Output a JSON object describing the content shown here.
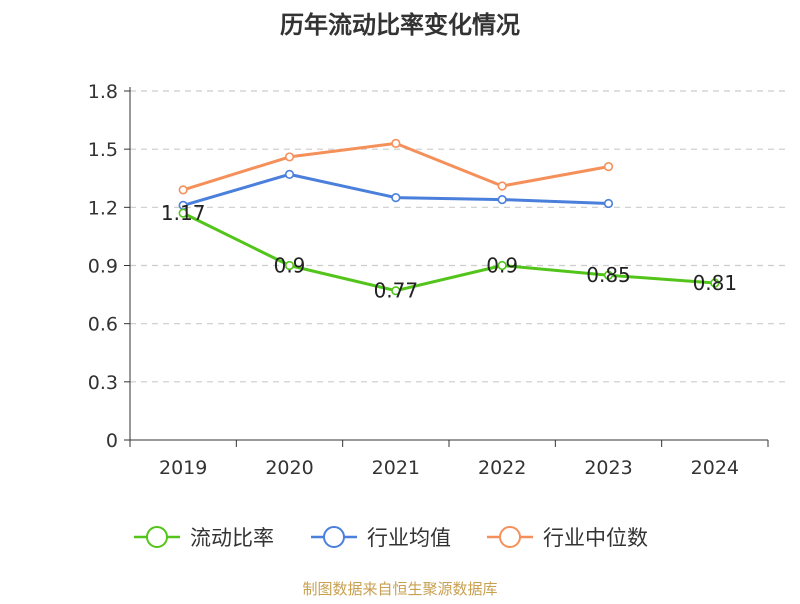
{
  "chart_data": {
    "type": "line",
    "title": "历年流动比率变化情况",
    "categories": [
      "2019",
      "2020",
      "2021",
      "2022",
      "2023",
      "2024"
    ],
    "ylim": [
      0,
      1.8
    ],
    "yticks": [
      "0",
      "0.3",
      "0.6",
      "0.9",
      "1.2",
      "1.5",
      "1.8"
    ],
    "grid": true,
    "legend_position": "bottom",
    "series": [
      {
        "name": "流动比率",
        "color": "#52c41a",
        "values": [
          1.17,
          0.9,
          0.77,
          0.9,
          0.85,
          0.81
        ],
        "labels": [
          "1.17",
          "0.9",
          "0.77",
          "0.9",
          "0.85",
          "0.81"
        ]
      },
      {
        "name": "行业均值",
        "color": "#4a7fdc",
        "values": [
          1.21,
          1.37,
          1.25,
          1.24,
          1.22,
          null
        ]
      },
      {
        "name": "行业中位数",
        "color": "#f5905a",
        "values": [
          1.29,
          1.46,
          1.53,
          1.31,
          1.41,
          null
        ]
      }
    ],
    "source": "制图数据来自恒生聚源数据库",
    "source_color": "#c8a050"
  }
}
